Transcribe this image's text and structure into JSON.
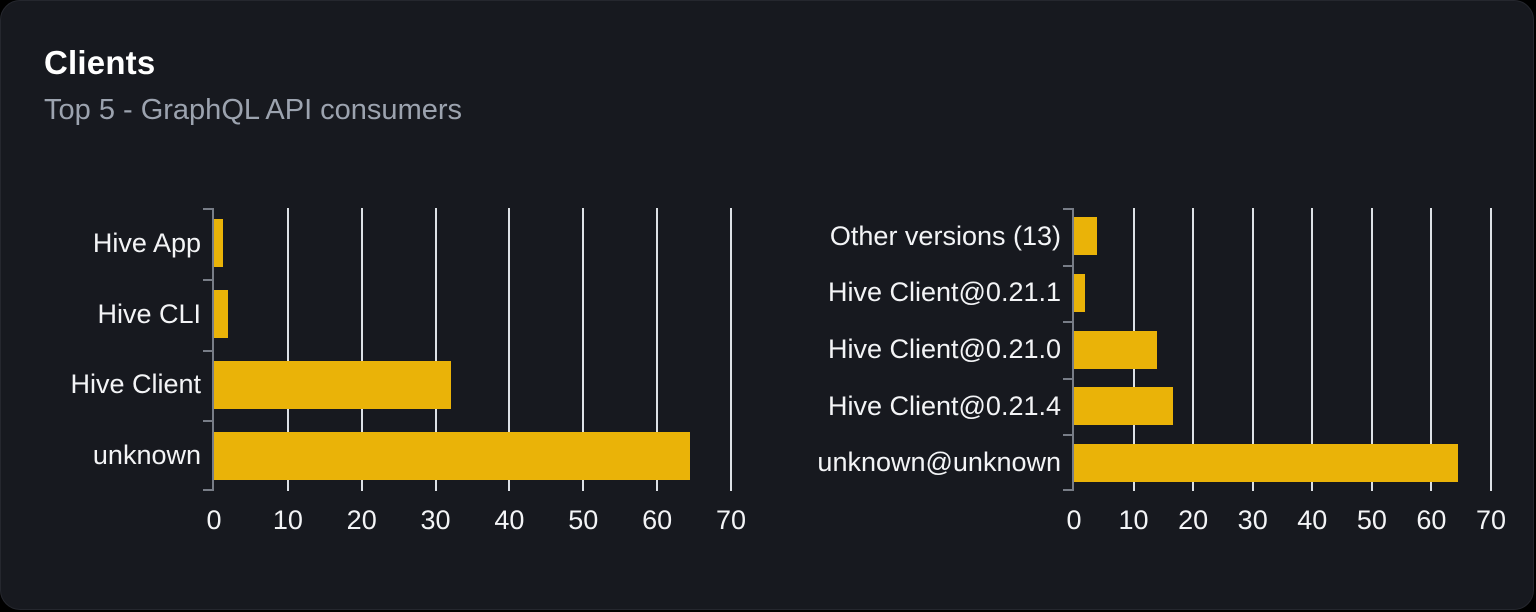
{
  "panel": {
    "title": "Clients",
    "subtitle": "Top 5 - GraphQL API consumers"
  },
  "colors": {
    "page_bg": "#000000",
    "card_bg": "#17191f",
    "title": "#ffffff",
    "subtitle": "#9ca3af",
    "label": "#f3f4f6",
    "bar": "#eab308",
    "grid": "#dde1e6",
    "axis": "#787d87"
  },
  "chart_data": [
    {
      "name": "clients",
      "type": "bar",
      "orientation": "horizontal",
      "title": "",
      "xlabel": "",
      "ylabel": "",
      "categories": [
        "Hive App",
        "Hive CLI",
        "Hive Client",
        "unknown"
      ],
      "values": [
        1.2,
        1.9,
        32.1,
        64.4
      ],
      "xlim": [
        0,
        70
      ],
      "xticks": [
        0,
        10,
        20,
        30,
        40,
        50,
        60,
        70
      ],
      "grid": true,
      "legend": false
    },
    {
      "name": "client-versions",
      "type": "bar",
      "orientation": "horizontal",
      "title": "",
      "xlabel": "",
      "ylabel": "",
      "categories": [
        "Other versions (13)",
        "Hive Client@0.21.1",
        "Hive Client@0.21.0",
        "Hive Client@0.21.4",
        "unknown@unknown"
      ],
      "values": [
        3.9,
        1.9,
        13.9,
        16.6,
        64.5
      ],
      "xlim": [
        0,
        70
      ],
      "xticks": [
        0,
        10,
        20,
        30,
        40,
        50,
        60,
        70
      ],
      "grid": true,
      "legend": false
    }
  ]
}
